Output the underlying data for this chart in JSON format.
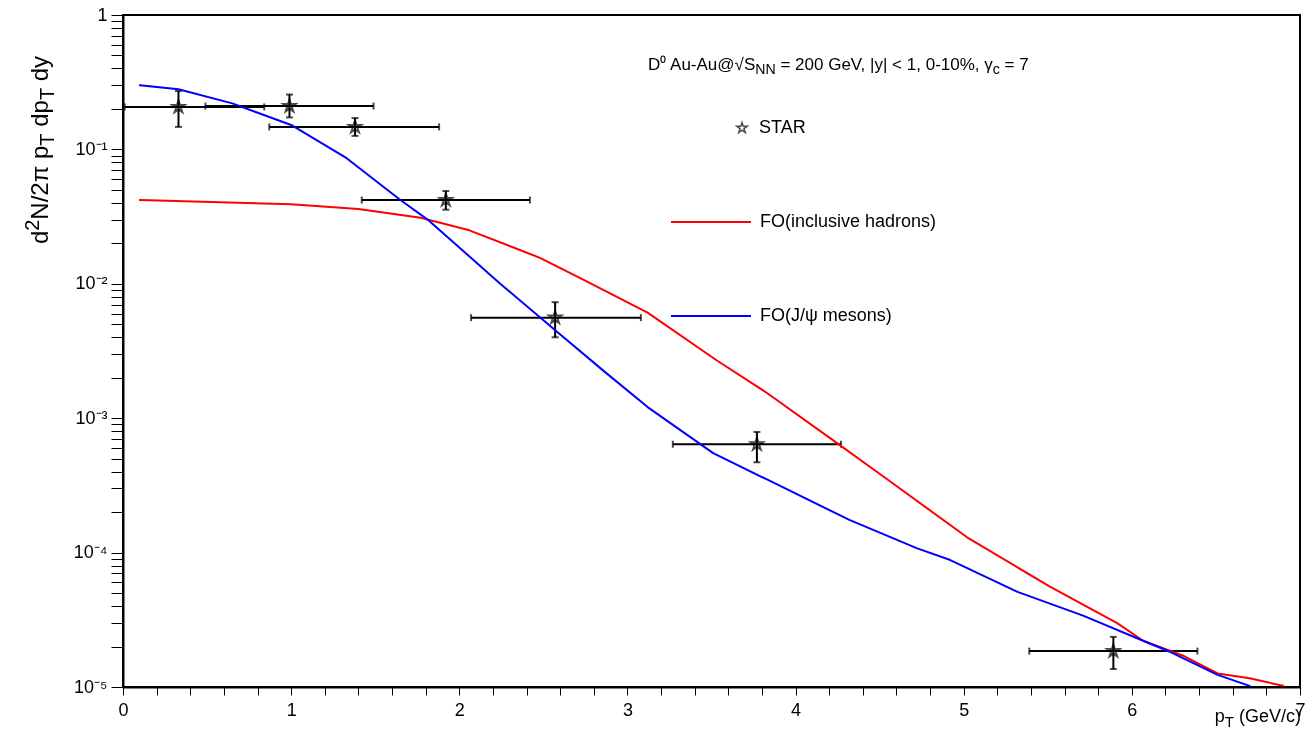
{
  "chart_data": {
    "type": "scatter",
    "title": "D⁰ Au-Au@√S$_{NN}$ = 200 GeV, |y| < 1, 0-10%, γ$_{c}$ = 7",
    "xlabel": "p$_{T}$ (GeV/c)",
    "ylabel": "d$^{2}$N/2π p$_{T}$ dp$_{T}$ dy",
    "log": "y",
    "grid": false,
    "legend": "top right",
    "xlim": [
      0,
      7
    ],
    "ylim": [
      1e-05,
      1
    ],
    "xticks": [
      0,
      {
        "value": 0.2,
        "label": null
      },
      {
        "value": 0.4,
        "label": null
      },
      {
        "value": 0.6,
        "label": null
      },
      {
        "value": 0.8,
        "label": null
      },
      1,
      {
        "value": 1.2,
        "label": null
      },
      {
        "value": 1.4,
        "label": null
      },
      {
        "value": 1.6,
        "label": null
      },
      {
        "value": 1.8,
        "label": null
      },
      2,
      {
        "value": 2.2,
        "label": null
      },
      {
        "value": 2.4,
        "label": null
      },
      {
        "value": 2.6,
        "label": null
      },
      {
        "value": 2.8,
        "label": null
      },
      3,
      {
        "value": 3.2,
        "label": null
      },
      {
        "value": 3.4,
        "label": null
      },
      {
        "value": 3.6,
        "label": null
      },
      {
        "value": 3.8,
        "label": null
      },
      4,
      {
        "value": 4.2,
        "label": null
      },
      {
        "value": 4.4,
        "label": null
      },
      {
        "value": 4.6,
        "label": null
      },
      {
        "value": 4.8,
        "label": null
      },
      5,
      {
        "value": 5.2,
        "label": null
      },
      {
        "value": 5.4,
        "label": null
      },
      {
        "value": 5.6,
        "label": null
      },
      {
        "value": 5.8,
        "label": null
      },
      6,
      {
        "value": 6.2,
        "label": null
      },
      {
        "value": 6.4,
        "label": null
      },
      {
        "value": 6.6,
        "label": null
      },
      {
        "value": 6.8,
        "label": null
      },
      7
    ],
    "yticks": [
      {
        "value": 1e-05,
        "label": "10⁻⁵"
      },
      {
        "value": 2e-05,
        "label": null
      },
      {
        "value": 3e-05,
        "label": null
      },
      {
        "value": 4e-05,
        "label": null
      },
      {
        "value": 5e-05,
        "label": null
      },
      {
        "value": 6e-05,
        "label": null
      },
      {
        "value": 7e-05,
        "label": null
      },
      {
        "value": 8e-05,
        "label": null
      },
      {
        "value": 9e-05,
        "label": null
      },
      {
        "value": 0.0001,
        "label": "10⁻⁴"
      },
      {
        "value": 0.0002,
        "label": null
      },
      {
        "value": 0.0003,
        "label": null
      },
      {
        "value": 0.0004,
        "label": null
      },
      {
        "value": 0.0005,
        "label": null
      },
      {
        "value": 0.0006,
        "label": null
      },
      {
        "value": 0.0007,
        "label": null
      },
      {
        "value": 0.0008,
        "label": null
      },
      {
        "value": 0.0009,
        "label": null
      },
      {
        "value": 0.001,
        "label": "10⁻³"
      },
      {
        "value": 0.002,
        "label": null
      },
      {
        "value": 0.003,
        "label": null
      },
      {
        "value": 0.004,
        "label": null
      },
      {
        "value": 0.005,
        "label": null
      },
      {
        "value": 0.006,
        "label": null
      },
      {
        "value": 0.007,
        "label": null
      },
      {
        "value": 0.008,
        "label": null
      },
      {
        "value": 0.009,
        "label": null
      },
      {
        "value": 0.01,
        "label": "10⁻²"
      },
      {
        "value": 0.02,
        "label": null
      },
      {
        "value": 0.03,
        "label": null
      },
      {
        "value": 0.04,
        "label": null
      },
      {
        "value": 0.05,
        "label": null
      },
      {
        "value": 0.06,
        "label": null
      },
      {
        "value": 0.07,
        "label": null
      },
      {
        "value": 0.08,
        "label": null
      },
      {
        "value": 0.09,
        "label": null
      },
      {
        "value": 0.1,
        "label": "10⁻¹"
      },
      {
        "value": 0.2,
        "label": null
      },
      {
        "value": 0.3,
        "label": null
      },
      {
        "value": 0.4,
        "label": null
      },
      {
        "value": 0.5,
        "label": null
      },
      {
        "value": 0.6,
        "label": null
      },
      {
        "value": 0.7,
        "label": null
      },
      {
        "value": 0.8,
        "label": null
      },
      {
        "value": 0.9,
        "label": null
      },
      1
    ],
    "series": [
      {
        "name": "STAR",
        "marker": "star",
        "color": "#000000",
        "x": [
          0.33,
          0.99,
          1.38,
          1.92,
          2.57,
          3.77,
          5.89
        ],
        "values": [
          0.207,
          0.21,
          0.147,
          0.042,
          0.0056,
          0.00064,
          1.85e-05
        ],
        "errors": [
          [
            0.147,
            0.272
          ],
          [
            0.173,
            0.256
          ],
          [
            0.126,
            0.171
          ],
          [
            0.0356,
            0.049
          ],
          [
            0.004,
            0.0073
          ],
          [
            0.00047,
            0.00079
          ],
          [
            1.36e-05,
            2.36e-05
          ]
        ],
        "xerrors": [
          [
            0.01,
            0.84
          ],
          [
            0.49,
            1.49
          ],
          [
            0.87,
            1.88
          ],
          [
            1.42,
            2.42
          ],
          [
            2.07,
            3.08
          ],
          [
            3.27,
            4.27
          ],
          [
            5.39,
            6.39
          ]
        ]
      },
      {
        "name": "FO(inclusive hadrons)",
        "type": "line",
        "marker": "none",
        "color": "#ff0000",
        "x": [
          0.1,
          1.0,
          1.4,
          1.77,
          2.06,
          2.48,
          2.74,
          3.12,
          3.53,
          3.83,
          4.22,
          4.52,
          5.02,
          5.51,
          5.91,
          6.07,
          6.31,
          6.51,
          6.7,
          6.9
        ],
        "values": [
          0.042,
          0.039,
          0.036,
          0.031,
          0.025,
          0.0156,
          0.0107,
          0.0061,
          0.0027,
          0.00154,
          0.00069,
          0.00037,
          0.00013,
          5.6e-05,
          3e-05,
          2.2e-05,
          1.7e-05,
          1.26e-05,
          1.16e-05,
          1.02e-05
        ]
      },
      {
        "name": "FO(J/ψ mesons)",
        "type": "line",
        "marker": "none",
        "color": "#0000ff",
        "x": [
          0.1,
          0.33,
          0.65,
          1.0,
          1.33,
          1.65,
          1.82,
          2.24,
          2.59,
          2.86,
          3.12,
          3.51,
          3.83,
          4.32,
          4.72,
          4.92,
          5.32,
          5.71,
          6.07,
          6.23,
          6.51,
          6.7
        ],
        "values": [
          0.3,
          0.28,
          0.22,
          0.152,
          0.086,
          0.042,
          0.0295,
          0.0101,
          0.0043,
          0.00224,
          0.00121,
          0.00055,
          0.00035,
          0.000175,
          0.000108,
          8.8e-05,
          5.1e-05,
          3.4e-05,
          2.2e-05,
          1.82e-05,
          1.23e-05,
          1.02e-05
        ]
      }
    ]
  }
}
